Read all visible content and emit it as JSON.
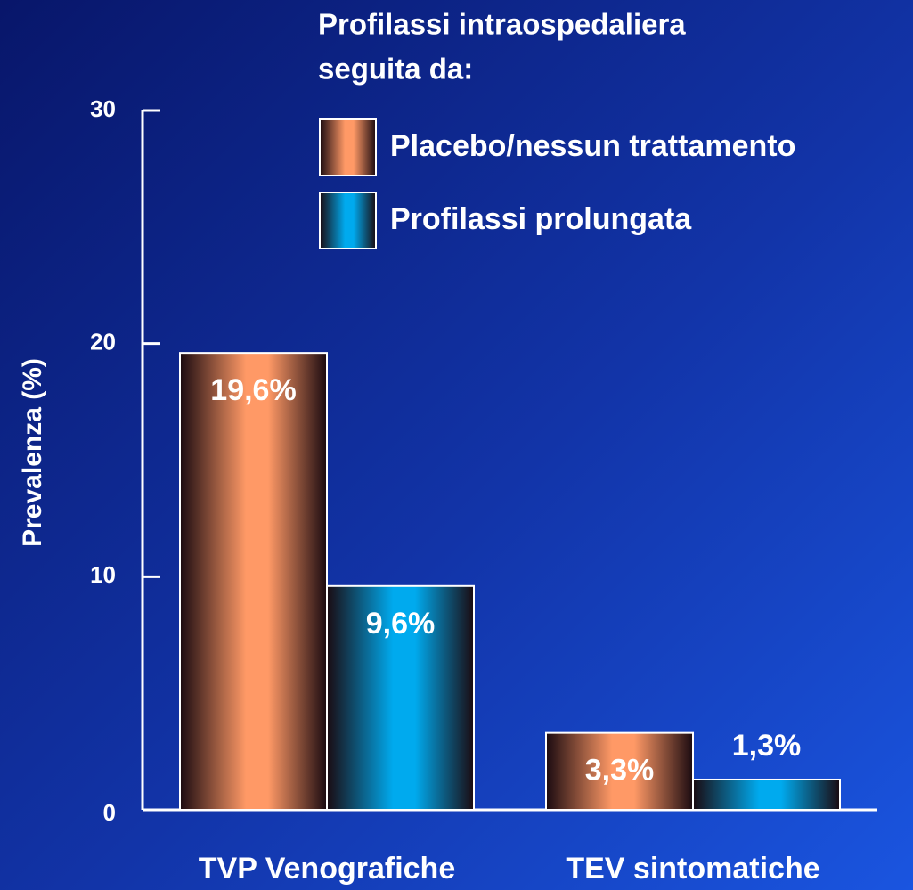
{
  "chart_data": {
    "type": "bar",
    "legend_title": [
      "Profilassi intraospedaliera",
      "seguita da:"
    ],
    "y_label": "Prevalenza (%)",
    "categories": [
      "TVP Venografiche",
      "TEV sintomatiche"
    ],
    "series": [
      {
        "name": "Placebo/nessun trattamento",
        "color": "#ff9966",
        "values": [
          19.6,
          3.3
        ],
        "value_labels": [
          "19,6%",
          "3,3%"
        ]
      },
      {
        "name": "Profilassi prolungata",
        "color": "#00aaee",
        "values": [
          9.6,
          1.3
        ],
        "value_labels": [
          "9,6%",
          "1,3%"
        ]
      }
    ],
    "ylim": [
      0,
      30
    ],
    "yticks": [
      0,
      10,
      20,
      30
    ]
  }
}
